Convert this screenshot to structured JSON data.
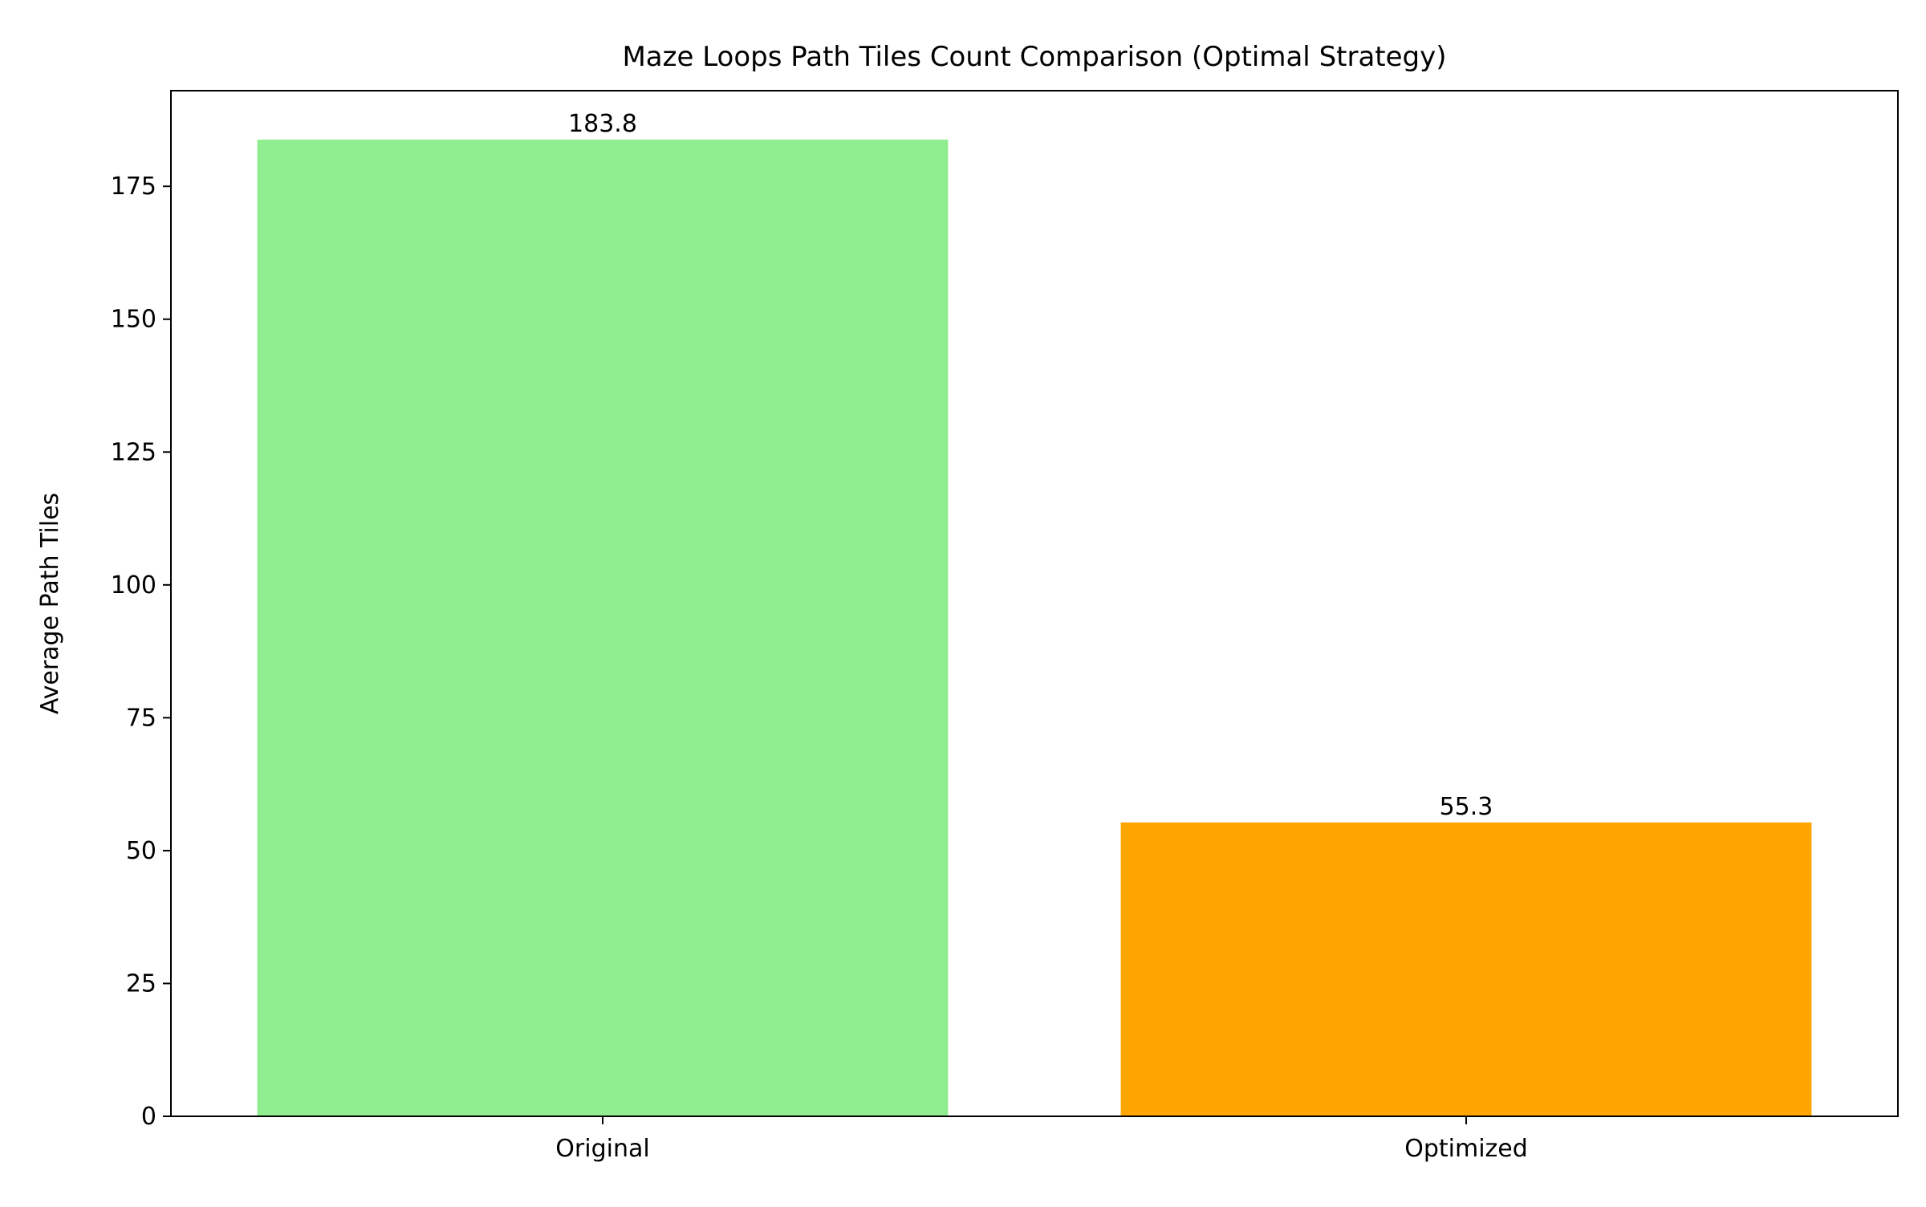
{
  "chart_data": {
    "type": "bar",
    "title": "Maze Loops Path Tiles Count Comparison (Optimal Strategy)",
    "xlabel": "",
    "ylabel": "Average Path Tiles",
    "categories": [
      "Original",
      "Optimized"
    ],
    "values": [
      183.8,
      55.3
    ],
    "data_labels": [
      "183.8",
      "55.3"
    ],
    "colors": [
      "#90ee90",
      "#ffa500"
    ],
    "ylim": [
      0,
      193
    ],
    "yticks": [
      0,
      25,
      50,
      75,
      100,
      125,
      150,
      175
    ],
    "grid": false,
    "legend": false
  }
}
